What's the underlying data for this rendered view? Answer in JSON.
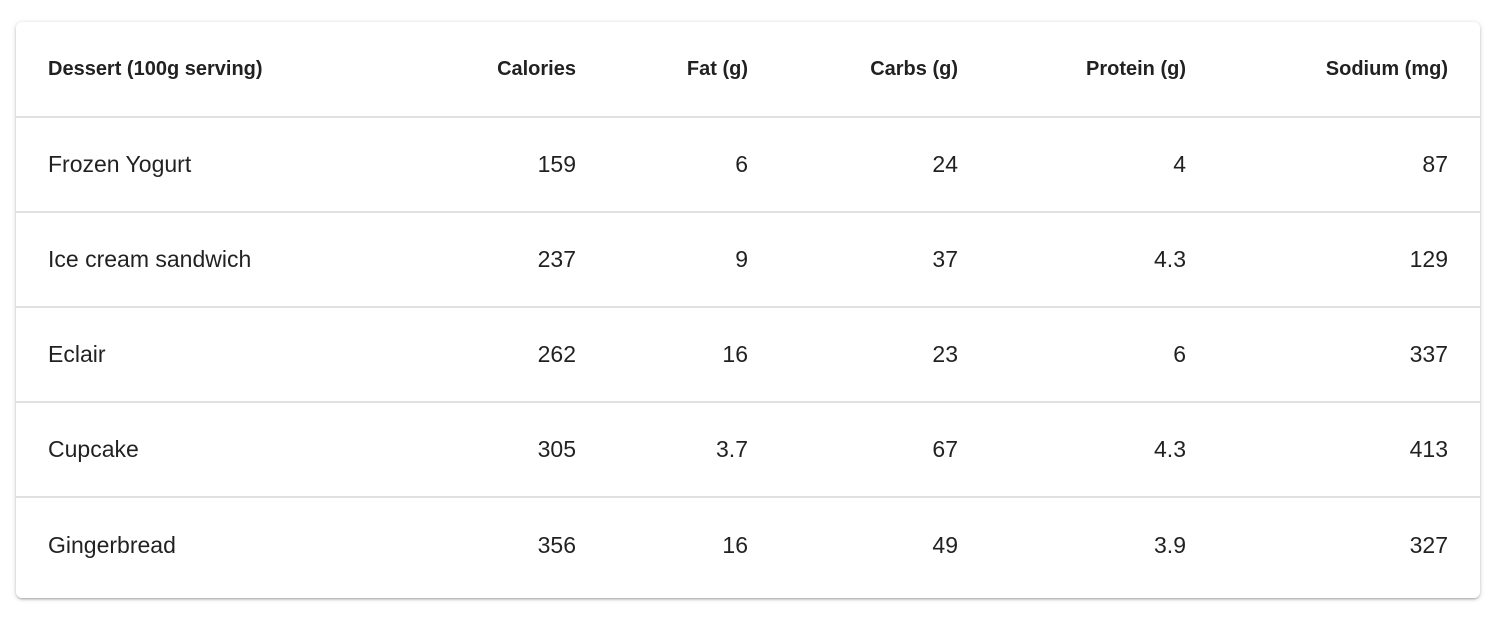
{
  "table": {
    "columns": [
      "Dessert (100g serving)",
      "Calories",
      "Fat (g)",
      "Carbs (g)",
      "Protein (g)",
      "Sodium (mg)"
    ],
    "rows": [
      [
        "Frozen Yogurt",
        "159",
        "6",
        "24",
        "4",
        "87"
      ],
      [
        "Ice cream sandwich",
        "237",
        "9",
        "37",
        "4.3",
        "129"
      ],
      [
        "Eclair",
        "262",
        "16",
        "23",
        "6",
        "337"
      ],
      [
        "Cupcake",
        "305",
        "3.7",
        "67",
        "4.3",
        "413"
      ],
      [
        "Gingerbread",
        "356",
        "16",
        "49",
        "3.9",
        "327"
      ]
    ]
  }
}
